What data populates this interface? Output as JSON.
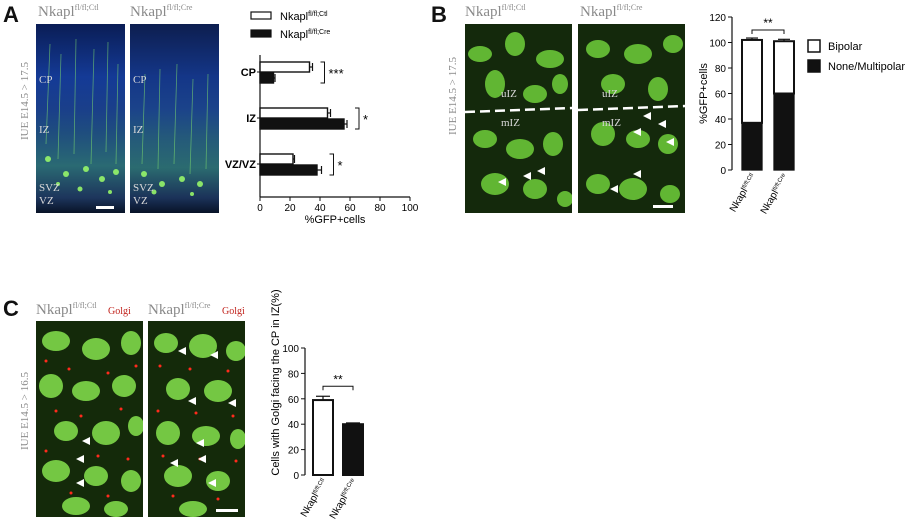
{
  "panels": {
    "A": {
      "letter": "A",
      "side_label": "IUE E14.5 > 17.5",
      "image_labels": [
        {
          "base": "Nkapl",
          "sup": "fl/fl;Ctl"
        },
        {
          "base": "Nkapl",
          "sup": "fl/fl;Cre"
        }
      ],
      "layer_labels": [
        "CP",
        "IZ",
        "SVZ",
        "VZ"
      ]
    },
    "B": {
      "letter": "B",
      "side_label": "IUE E14.5 > 17.5",
      "image_labels": [
        {
          "base": "Nkapl",
          "sup": "fl/fl;Ctl"
        },
        {
          "base": "Nkapl",
          "sup": "fl/fl;Cre"
        }
      ],
      "zone_labels": [
        "uIZ",
        "mIZ"
      ]
    },
    "C": {
      "letter": "C",
      "side_label": "IUE E14.5 > 16.5",
      "image_labels": [
        {
          "base": "Nkapl",
          "sup": "fl/fl;Ctl"
        },
        {
          "base": "Nkapl",
          "sup": "fl/fl;Cre"
        }
      ],
      "stain_label": "Golgi"
    }
  },
  "colors": {
    "dapi_blue": "#1f3f8f",
    "gfp_green": "#7ed957",
    "golgi_red": "#e0281e",
    "bar_black": "#111111"
  },
  "chart_data": [
    {
      "type": "bar",
      "orientation": "horizontal",
      "categories": [
        "CP",
        "IZ",
        "SVZ/VZ"
      ],
      "series": [
        {
          "name": "Nkapl fl/fl;Ctl",
          "values": [
            33,
            45,
            22
          ],
          "errors": [
            2,
            2,
            1
          ],
          "fill": "white"
        },
        {
          "name": "Nkapl fl/fl;Cre",
          "values": [
            9,
            56,
            38
          ],
          "errors": [
            1,
            2,
            3
          ],
          "fill": "black"
        }
      ],
      "significance": [
        "***",
        "*",
        "*"
      ],
      "xlabel": "%GFP+cells",
      "xlim": [
        0,
        100
      ],
      "xticks": [
        0,
        20,
        40,
        60,
        80,
        100
      ],
      "legend_placement": "top"
    },
    {
      "type": "bar",
      "stacked": true,
      "categories": [
        {
          "base": "Nkapl",
          "sup": "fl/fl;Ctl"
        },
        {
          "base": "Nkapl",
          "sup": "fl/fl;Cre"
        }
      ],
      "series": [
        {
          "name": "Bipolar",
          "values": [
            65,
            41
          ],
          "fill": "white"
        },
        {
          "name": "None/Multipolar",
          "values": [
            37,
            60
          ],
          "fill": "black"
        }
      ],
      "errors": [
        1.5,
        1.5
      ],
      "significance": "**",
      "ylabel": "%GFP+cells",
      "ylim": [
        0,
        120
      ],
      "yticks": [
        0,
        20,
        40,
        60,
        80,
        100,
        120
      ],
      "legend_placement": "right"
    },
    {
      "type": "bar",
      "categories": [
        {
          "base": "Nkapl",
          "sup": "fl/fl;Ctl"
        },
        {
          "base": "Nkapl",
          "sup": "fl/fl;Cre"
        }
      ],
      "values": [
        59,
        40
      ],
      "errors": [
        3,
        1
      ],
      "fills": [
        "white",
        "black"
      ],
      "significance": "**",
      "ylabel": "Cells with Golgi facing the CP in IZ(%)",
      "ylim": [
        0,
        100
      ],
      "yticks": [
        0,
        20,
        40,
        60,
        80,
        100
      ]
    }
  ]
}
